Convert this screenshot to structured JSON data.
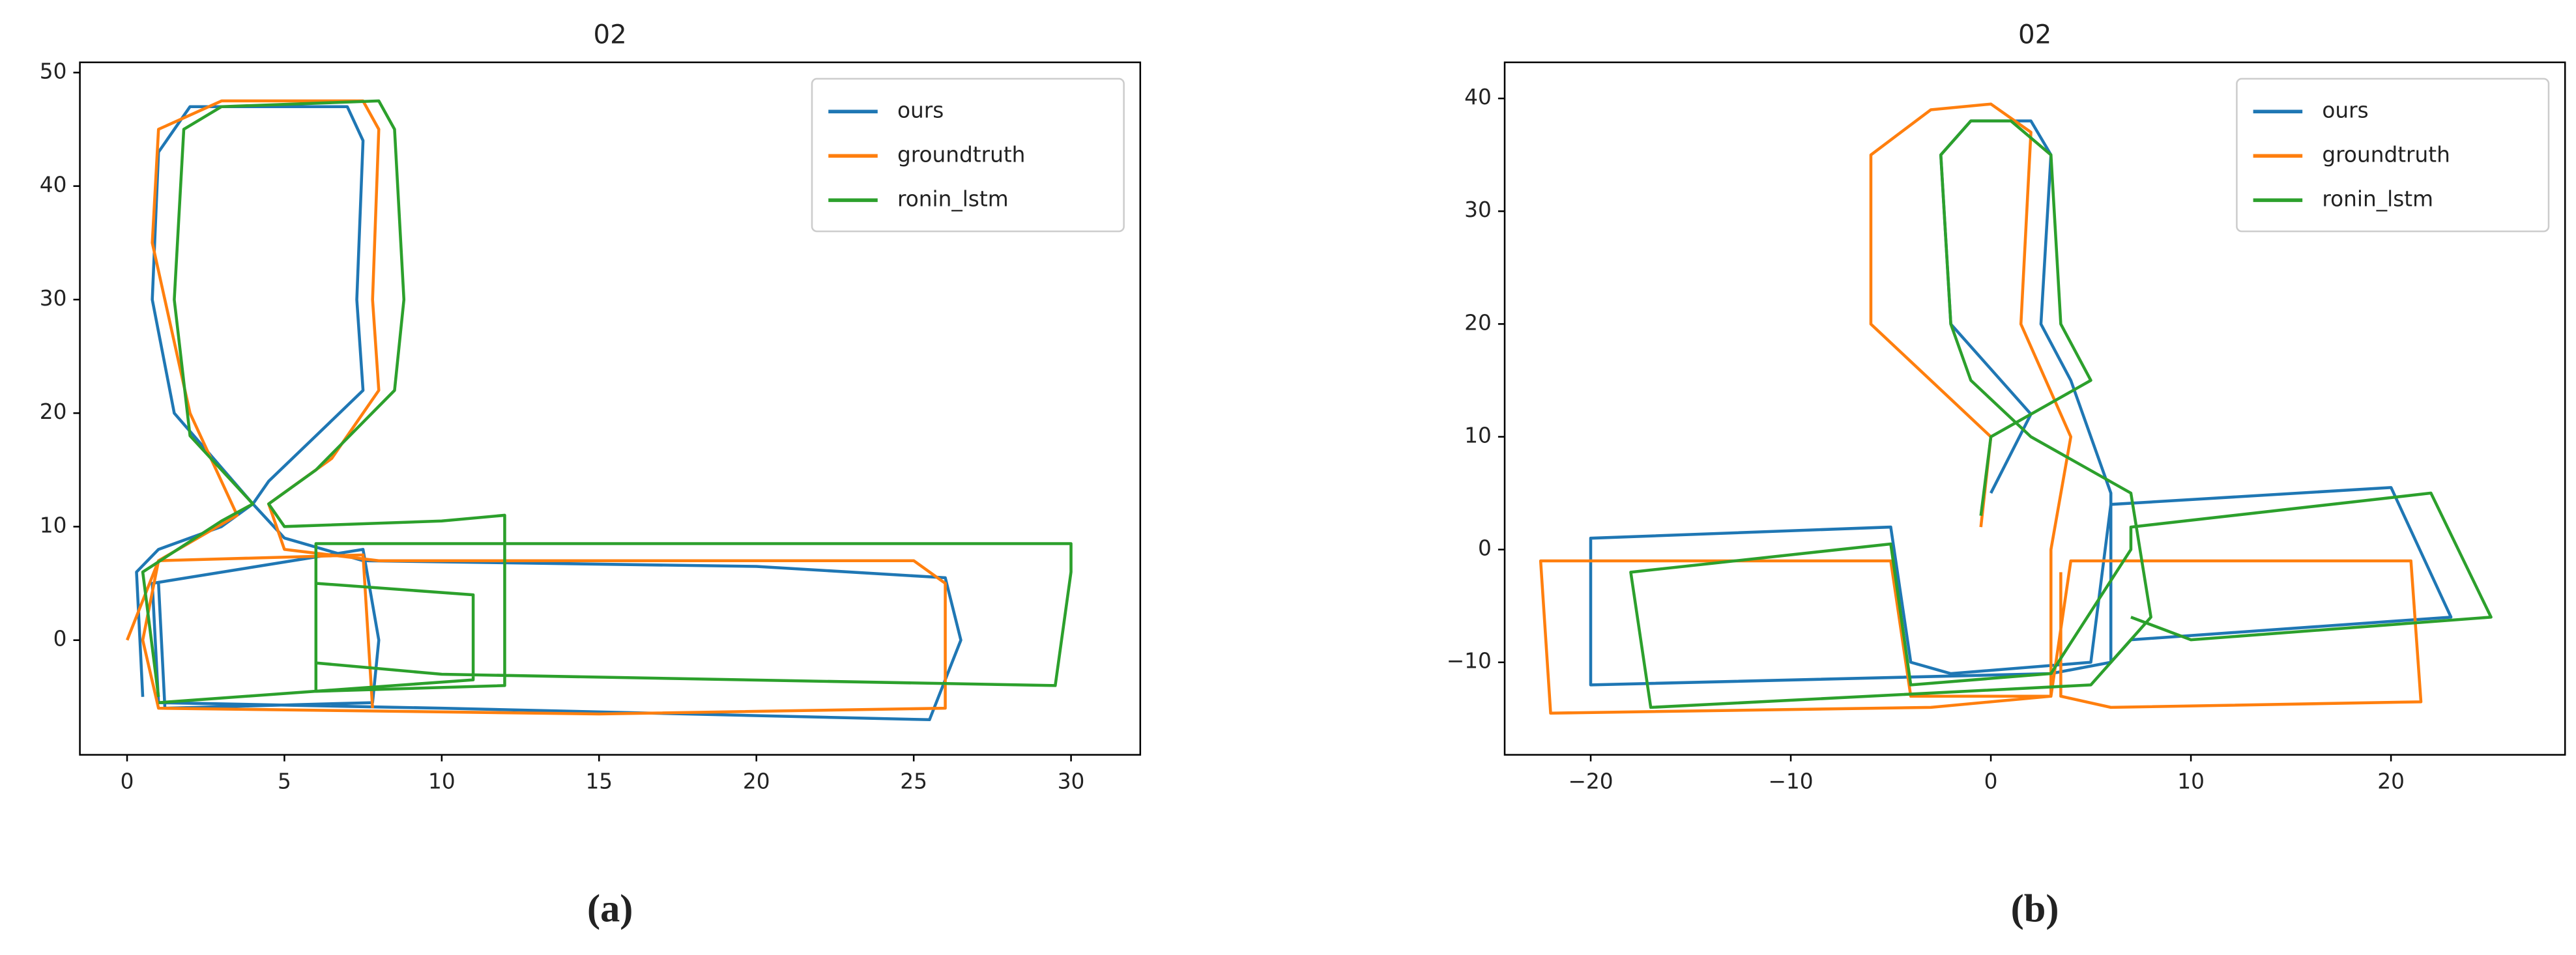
{
  "chart_data": [
    {
      "type": "line",
      "title": "02",
      "caption": "(a)",
      "legend": "upper right",
      "grid": false,
      "xlim": [
        -1.5,
        32.2
      ],
      "ylim": [
        -10.1,
        50.9
      ],
      "xticks": [
        0,
        5,
        10,
        15,
        20,
        25,
        30
      ],
      "yticks": [
        0,
        10,
        20,
        30,
        40,
        50
      ],
      "series": [
        {
          "name": "ours",
          "color": "#1f77b4",
          "x": [
            0.5,
            0.3,
            1,
            3,
            4,
            1.5,
            0.8,
            1,
            2,
            7,
            7.5,
            7.3,
            7.5,
            6,
            4.5,
            4,
            5,
            7.5,
            20,
            26,
            26.5,
            25.5,
            10,
            1,
            0.8,
            7.5,
            8,
            7.8,
            1.2,
            1
          ],
          "values": [
            -5,
            6,
            8,
            10,
            12,
            20,
            30,
            43,
            47,
            47,
            44,
            30,
            22,
            18,
            14,
            12,
            9,
            7,
            6.5,
            5.5,
            0,
            -7,
            -6,
            -5.5,
            5,
            8,
            0,
            -5.5,
            -6,
            5
          ]
        },
        {
          "name": "groundtruth",
          "color": "#ff7f0e",
          "x": [
            0,
            1,
            3.5,
            2,
            0.8,
            1,
            3,
            7.5,
            8,
            7.8,
            8,
            6.5,
            4.5,
            5,
            8,
            25,
            26,
            26,
            15,
            1,
            0.5,
            1,
            7.5,
            7.8
          ],
          "values": [
            0,
            7,
            11,
            20,
            35,
            45,
            47.5,
            47.5,
            45,
            30,
            22,
            16,
            12,
            8,
            7,
            7,
            5,
            -6,
            -6.5,
            -6,
            0,
            7,
            7.5,
            -6
          ]
        },
        {
          "name": "ronin_lstm",
          "color": "#2ca02c",
          "x": [
            1,
            0.5,
            3,
            4,
            2,
            1.5,
            1.8,
            3,
            8,
            8.5,
            8.8,
            8.5,
            6,
            4.5,
            5,
            10,
            12,
            12,
            6,
            6,
            30,
            30,
            29.5,
            10,
            6,
            6,
            11,
            11,
            1
          ],
          "values": [
            -5,
            6,
            10.5,
            12,
            18,
            30,
            45,
            47,
            47.5,
            45,
            30,
            22,
            15,
            12,
            10,
            10.5,
            11,
            -4,
            -4.5,
            8.5,
            8.5,
            6,
            -4,
            -3,
            -2,
            5,
            4,
            -3.5,
            -5.5
          ]
        }
      ]
    },
    {
      "type": "line",
      "title": "02",
      "caption": "(b)",
      "legend": "upper right",
      "grid": false,
      "xlim": [
        -24.3,
        28.7
      ],
      "ylim": [
        -18.2,
        43.2
      ],
      "xticks": [
        {
          "value": -20,
          "label": "−20"
        },
        {
          "value": -10,
          "label": "−10"
        },
        0,
        10,
        20
      ],
      "yticks": [
        {
          "value": -10,
          "label": "−10"
        },
        0,
        10,
        20,
        30,
        40
      ],
      "series": [
        {
          "name": "ours",
          "color": "#1f77b4",
          "x": [
            0,
            2,
            -2,
            -2.5,
            -1,
            2,
            3,
            2.5,
            4,
            6,
            6,
            3,
            -20,
            -20,
            -5,
            -4,
            -2,
            5,
            6,
            20,
            23,
            7,
            6
          ],
          "values": [
            5,
            12,
            20,
            35,
            38,
            38,
            35,
            20,
            15,
            5,
            -10,
            -11,
            -12,
            1,
            2,
            -10,
            -11,
            -10,
            4,
            5.5,
            -6,
            -8,
            -10
          ]
        },
        {
          "name": "groundtruth",
          "color": "#ff7f0e",
          "x": [
            -0.5,
            0,
            -6,
            -6,
            -3,
            0,
            2,
            1.5,
            4,
            3,
            3,
            -3,
            -22,
            -22.5,
            -5,
            -4,
            3,
            4,
            21,
            21.5,
            6,
            3.5,
            3.5
          ],
          "values": [
            2,
            10,
            20,
            35,
            39,
            39.5,
            37,
            20,
            10,
            0,
            -13,
            -14,
            -14.5,
            -1,
            -1,
            -13,
            -13,
            -1,
            -1,
            -13.5,
            -14,
            -13,
            -2
          ]
        },
        {
          "name": "ronin_lstm",
          "color": "#2ca02c",
          "x": [
            -0.5,
            0,
            5,
            3.5,
            3,
            1,
            -1,
            -2.5,
            -2,
            -1,
            2,
            7,
            8,
            5,
            -17,
            -18,
            -5,
            -4,
            3,
            7,
            7,
            22,
            25,
            10,
            7
          ],
          "values": [
            3,
            10,
            15,
            20,
            35,
            38,
            38,
            35,
            20,
            15,
            10,
            5,
            -6,
            -12,
            -14,
            -2,
            0.5,
            -12,
            -11,
            0,
            2,
            5,
            -6,
            -8,
            -6
          ]
        }
      ]
    }
  ]
}
